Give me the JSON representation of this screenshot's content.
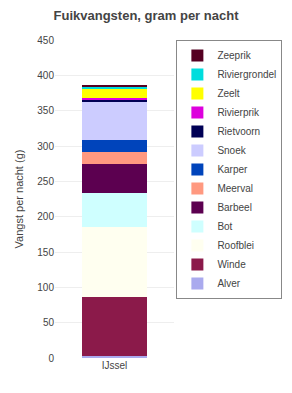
{
  "chart_data": {
    "type": "bar",
    "stacked": true,
    "title": "Fuikvangsten, gram per nacht",
    "ylabel": "Vangst per nacht (g)",
    "categories": [
      "IJssel"
    ],
    "series": [
      {
        "name": "Alver",
        "color": "#aaaaee",
        "values": [
          3
        ]
      },
      {
        "name": "Winde",
        "color": "#8b1a4a",
        "values": [
          83
        ]
      },
      {
        "name": "Roofblei",
        "color": "#fffff0",
        "values": [
          100
        ]
      },
      {
        "name": "Bot",
        "color": "#cfffff",
        "values": [
          47
        ]
      },
      {
        "name": "Barbeel",
        "color": "#5c0050",
        "values": [
          42
        ]
      },
      {
        "name": "Meerval",
        "color": "#ff9980",
        "values": [
          17
        ]
      },
      {
        "name": "Karper",
        "color": "#0044bb",
        "values": [
          17
        ]
      },
      {
        "name": "Snoek",
        "color": "#ccccff",
        "values": [
          53
        ]
      },
      {
        "name": "Rietvoorn",
        "color": "#000055",
        "values": [
          3
        ]
      },
      {
        "name": "Rivierprik",
        "color": "#dd00dd",
        "values": [
          3
        ]
      },
      {
        "name": "Zeelt",
        "color": "#ffff00",
        "values": [
          13
        ]
      },
      {
        "name": "Riviergrondel",
        "color": "#00dddd",
        "values": [
          3
        ]
      },
      {
        "name": "Zeeprik",
        "color": "#550022",
        "values": [
          2
        ]
      }
    ],
    "ylim": [
      0,
      450
    ],
    "yticks": [
      0,
      50,
      100,
      150,
      200,
      250,
      300,
      350,
      400,
      450
    ],
    "grid": true,
    "legend": "upper right"
  }
}
